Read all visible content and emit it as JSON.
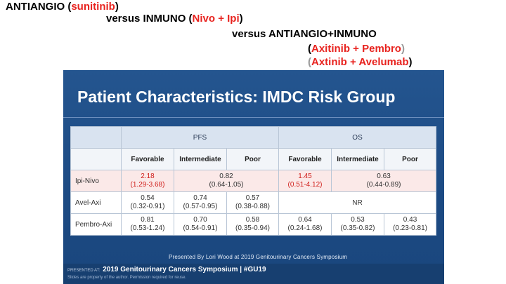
{
  "header": {
    "line1": {
      "prefix": "ANTIANGIO (",
      "drug": "sunitinib",
      "suffix": ")"
    },
    "line2": {
      "prefix": "versus  INMUNO (",
      "drug": "Nivo + Ipi",
      "suffix": ")"
    },
    "line3": {
      "text": "versus  ANTIANGIO+INMUNO"
    },
    "line4": {
      "prefix": "(",
      "drug": "Axitinib + Pembro",
      "suffix": ")"
    },
    "line5": {
      "prefix": "(",
      "drug": "Axtinib + Avelumab",
      "suffix": ")"
    }
  },
  "slide": {
    "title": "Patient Characteristics: IMDC Risk Group",
    "table": {
      "groups": {
        "pfs": "PFS",
        "os": "OS"
      },
      "subheaders": [
        "Favorable",
        "Intermediate",
        "Poor",
        "Favorable",
        "Intermediate",
        "Poor"
      ],
      "rows": [
        {
          "drug": "Ipi-Nivo",
          "pfs_fav": {
            "v": "2.18",
            "ci": "(1.29-3.68)"
          },
          "pfs_int_poor": {
            "v": "0.82",
            "ci": "(0.64-1.05)"
          },
          "os_fav": {
            "v": "1.45",
            "ci": "(0.51-4.12)"
          },
          "os_int_poor": {
            "v": "0.63",
            "ci": "(0.44-0.89)"
          }
        },
        {
          "drug": "Avel-Axi",
          "pfs_fav": {
            "v": "0.54",
            "ci": "(0.32-0.91)"
          },
          "pfs_int": {
            "v": "0.74",
            "ci": "(0.57-0.95)"
          },
          "pfs_poor": {
            "v": "0.57",
            "ci": "(0.38-0.88)"
          },
          "os": "NR"
        },
        {
          "drug": "Pembro-Axi",
          "pfs_fav": {
            "v": "0.81",
            "ci": "(0.53-1.24)"
          },
          "pfs_int": {
            "v": "0.70",
            "ci": "(0.54-0.91)"
          },
          "pfs_poor": {
            "v": "0.58",
            "ci": "(0.35-0.94)"
          },
          "os_fav": {
            "v": "0.64",
            "ci": "(0.24-1.68)"
          },
          "os_int": {
            "v": "0.53",
            "ci": "(0.35-0.82)"
          },
          "os_poor": {
            "v": "0.43",
            "ci": "(0.23-0.81)"
          }
        }
      ]
    },
    "caption": "Presented By Lori Wood at 2019 Genitourinary Cancers Symposium",
    "footer": {
      "presented_at": "PRESENTED AT:",
      "symposium": "2019 Genitourinary Cancers Symposium  |  #GU19",
      "note": "Slides are property of the author. Permission required for reuse."
    }
  },
  "colors": {
    "accent_red": "#e8231f",
    "slide_blue": "#1d4c86",
    "footer_blue": "#173f70"
  }
}
